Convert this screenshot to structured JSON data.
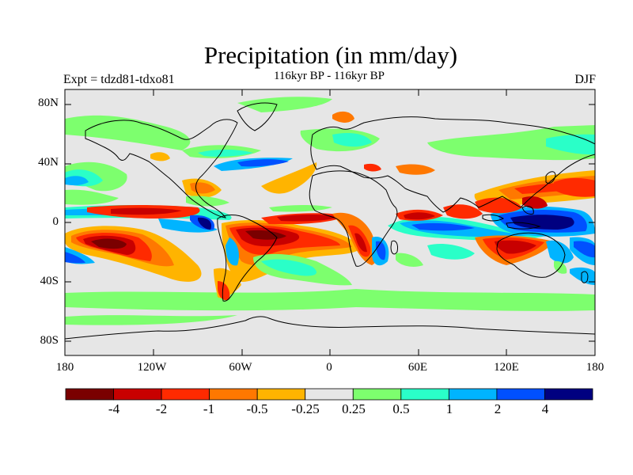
{
  "title": "Precipitation (in mm/day)",
  "subtitle": "116kyr BP - 116kyr BP",
  "left_label": "Expt = tdzd81-tdxo81",
  "right_label": "DJF",
  "lat_ticks": [
    "80N",
    "40N",
    "0",
    "40S",
    "80S"
  ],
  "lon_ticks": [
    "180",
    "120W",
    "60W",
    "0",
    "60E",
    "120E",
    "180"
  ],
  "colorbar": {
    "colors": [
      "#7a0000",
      "#c80000",
      "#ff2a00",
      "#ff7800",
      "#ffb400",
      "#e6e6e6",
      "#7dff6e",
      "#2affc8",
      "#00b4ff",
      "#0050ff",
      "#000080"
    ],
    "labels": [
      "-4",
      "-2",
      "-1",
      "-0.5",
      "-0.25",
      "0.25",
      "0.5",
      "1",
      "2",
      "4"
    ]
  }
}
